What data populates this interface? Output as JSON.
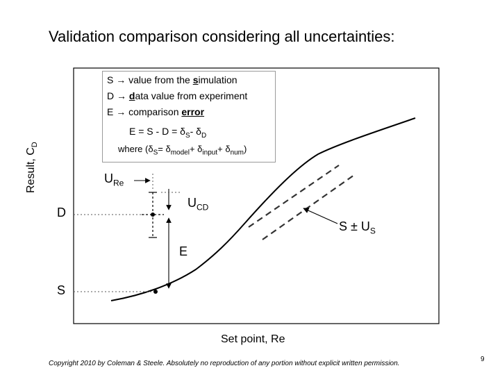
{
  "title": "Validation comparison considering all uncertainties:",
  "axes": {
    "y_label_main": "Result, C",
    "y_label_sub": "D",
    "x_label": "Set point, Re",
    "tick_D": "D",
    "tick_S": "S"
  },
  "legend": {
    "line1": {
      "prefix": "S → value from the ",
      "key": "s",
      "rest": "imulation"
    },
    "line2": {
      "prefix": "D → ",
      "key": "d",
      "rest": "ata value from experiment"
    },
    "line3": {
      "prefix": "E → comparison ",
      "key": "error",
      "rest": ""
    },
    "eq1": {
      "lhs": "E = S - D = δ",
      "s1": "S",
      "mid": "- δ",
      "s2": "D"
    },
    "eq2": {
      "a": "where (δ",
      "s1": "S",
      "b": "= δ",
      "s2": "model",
      "c": "+ δ",
      "s3": "input",
      "d": "+ δ",
      "s4": "num",
      "e": ")"
    }
  },
  "annotations": {
    "U_Re": {
      "main": "U",
      "sub": "Re"
    },
    "U_CD": {
      "main": "U",
      "sub": "CD"
    },
    "S_band": {
      "main": "S ± U",
      "sub": "S"
    },
    "E": "E"
  },
  "footer": {
    "copyright": "Copyright 2010 by Coleman & Steele.  Absolutely no reproduction of any portion without explicit written permission.",
    "page_number": "9"
  },
  "colors": {
    "line": "#000000",
    "dashed": "#444444",
    "box_border": "#9a9a9a"
  }
}
